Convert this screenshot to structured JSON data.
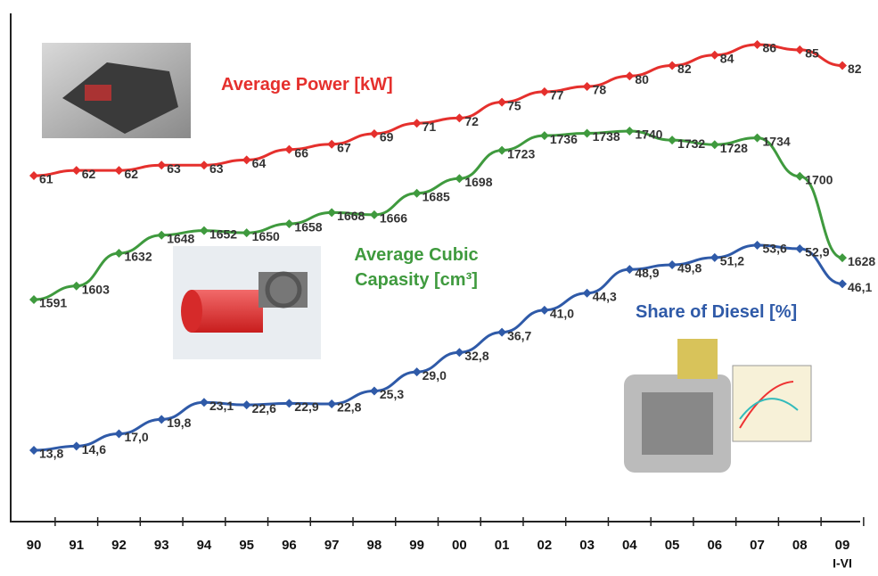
{
  "chart_data": {
    "type": "line",
    "categories": [
      "90",
      "91",
      "92",
      "93",
      "94",
      "95",
      "96",
      "97",
      "98",
      "99",
      "00",
      "01",
      "02",
      "03",
      "04",
      "05",
      "06",
      "07",
      "08",
      "09"
    ],
    "last_category_note": "I-VI",
    "series": [
      {
        "name": "Average Power [kW]",
        "color": "#e5302d",
        "values": [
          61,
          62,
          62,
          63,
          63,
          64,
          66,
          67,
          69,
          71,
          72,
          75,
          77,
          78,
          80,
          82,
          84,
          86,
          85,
          82
        ]
      },
      {
        "name": "Average Cubic Capasity [cm³]",
        "color": "#3f9a3e",
        "values": [
          1591,
          1603,
          1632,
          1648,
          1652,
          1650,
          1658,
          1668,
          1666,
          1685,
          1698,
          1723,
          1736,
          1738,
          1740,
          1732,
          1728,
          1734,
          1700,
          1628
        ]
      },
      {
        "name": "Share of Diesel [%]",
        "color": "#2f5aa8",
        "values": [
          13.8,
          14.6,
          17.0,
          19.8,
          23.1,
          22.6,
          22.9,
          22.8,
          25.3,
          29.0,
          32.8,
          36.7,
          41.0,
          44.3,
          48.9,
          49.8,
          51.2,
          53.6,
          52.9,
          46.1
        ],
        "value_labels": [
          "13,8",
          "14,6",
          "17,0",
          "19,8",
          "23,1",
          "22,6",
          "22,9",
          "22,8",
          "25,3",
          "29,0",
          "32,8",
          "36,7",
          "41,0",
          "44,3",
          "48,9",
          "49,8",
          "51,2",
          "53,6",
          "52,9",
          "46,1"
        ]
      }
    ]
  }
}
